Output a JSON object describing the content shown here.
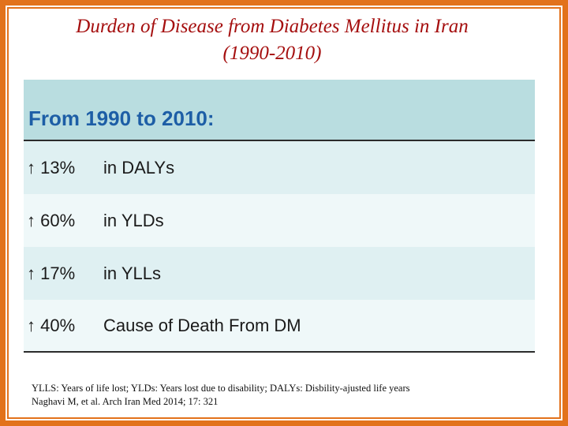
{
  "title": {
    "line1": "Durden of Disease from Diabetes Mellitus in Iran",
    "line2": "(1990-2010)"
  },
  "table": {
    "header": "From 1990 to 2010:",
    "rows": [
      {
        "arrow": "↑",
        "value": "13%",
        "label": "in DALYs"
      },
      {
        "arrow": "↑",
        "value": "60%",
        "label": "in YLDs"
      },
      {
        "arrow": "↑",
        "value": "17%",
        "label": "in YLLs"
      },
      {
        "arrow": "↑",
        "value": "40%",
        "label": "Cause of Death From DM"
      }
    ]
  },
  "footnote": {
    "line1": "YLLS: Years of life lost; YLDs: Years lost due to disability; DALYs: Disbility-ajusted life years",
    "line2": "Naghavi M, et al. Arch Iran Med 2014; 17: 321"
  },
  "colors": {
    "frame": "#e2721b",
    "title": "#a50f0f",
    "header_bg": "#b9dde0",
    "header_text": "#1d5ea6",
    "row_dark": "#dff0f2",
    "row_light": "#eff8f9"
  }
}
